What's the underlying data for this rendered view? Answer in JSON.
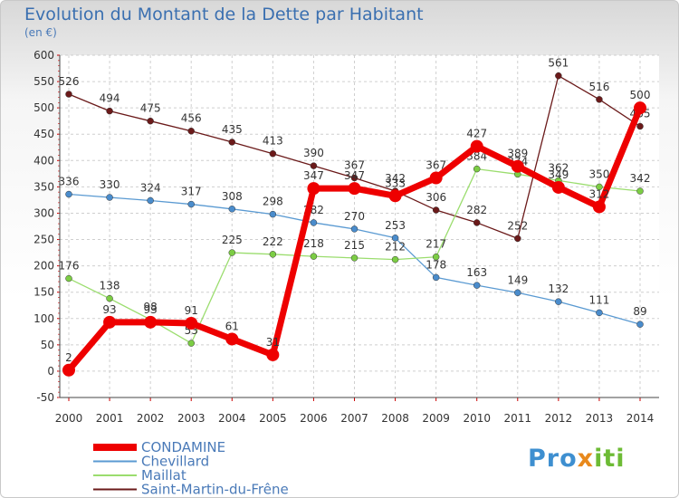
{
  "title": "Evolution du Montant de la Dette par Habitant",
  "unit": "(en €)",
  "logo": {
    "part1": "Pro",
    "part2": "x",
    "part3": "iti"
  },
  "chart_data": {
    "type": "line",
    "categories": [
      "2000",
      "2001",
      "2002",
      "2003",
      "2004",
      "2005",
      "2006",
      "2007",
      "2008",
      "2009",
      "2010",
      "2011",
      "2012",
      "2013",
      "2014"
    ],
    "ylim": [
      -50,
      600
    ],
    "yticks": [
      -50,
      0,
      50,
      100,
      150,
      200,
      250,
      300,
      350,
      400,
      450,
      500,
      550,
      600
    ],
    "grid": true,
    "legend_position": "bottom-left",
    "series": [
      {
        "name": "Saint-Martin-du-Frêne",
        "color": "#6b1a1a",
        "marker": "#6b1a1a",
        "width": 1.3,
        "values": [
          526,
          494,
          475,
          456,
          435,
          413,
          390,
          367,
          342,
          306,
          282,
          252,
          561,
          516,
          465
        ],
        "labels": [
          "526",
          "494",
          "475",
          "456",
          "435",
          "413",
          "390",
          "367",
          "342",
          "306",
          "282",
          "252",
          "561",
          "516",
          "465"
        ]
      },
      {
        "name": "Chevillard",
        "color": "#5a9ad2",
        "marker": "#4a8ccc",
        "width": 1.3,
        "values": [
          336,
          330,
          324,
          317,
          308,
          298,
          282,
          270,
          253,
          178,
          163,
          149,
          132,
          111,
          89
        ],
        "labels": [
          "336",
          "330",
          "324",
          "317",
          "308",
          "298",
          "282",
          "270",
          "253",
          "178",
          "163",
          "149",
          "132",
          "111",
          "89"
        ]
      },
      {
        "name": "Maillat",
        "color": "#9bdd6e",
        "marker": "#7ccd44",
        "width": 1.3,
        "values": [
          176,
          138,
          98,
          53,
          225,
          222,
          218,
          215,
          212,
          217,
          384,
          374,
          362,
          350,
          342
        ],
        "labels": [
          "176",
          "138",
          "98",
          "53",
          "225",
          "222",
          "218",
          "215",
          "212",
          "217",
          "384",
          "374",
          "362",
          "350",
          "342"
        ]
      },
      {
        "name": "CONDAMINE",
        "color": "#ee0000",
        "marker": "#ee0000",
        "width": 7,
        "values": [
          2,
          93,
          93,
          91,
          61,
          31,
          347,
          347,
          333,
          367,
          427,
          389,
          349,
          312,
          500
        ],
        "labels": [
          "2",
          "93",
          "93",
          "91",
          "61",
          "31",
          "347",
          "347",
          "333",
          "367",
          "427",
          "389",
          "349",
          "312",
          "500"
        ]
      }
    ],
    "legend_order": [
      "CONDAMINE",
      "Chevillard",
      "Maillat",
      "Saint-Martin-du-Frêne"
    ]
  }
}
